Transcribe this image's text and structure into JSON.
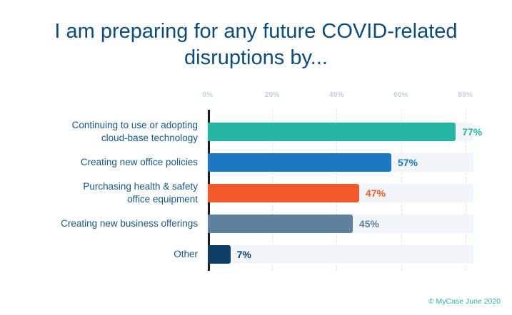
{
  "title": "I am preparing for any future COVID-related disruptions by...",
  "footer": "© MyCase June 2020",
  "chart_data": {
    "type": "bar",
    "orientation": "horizontal",
    "title": "I am preparing for any future COVID-related disruptions by...",
    "categories": [
      "Continuing to use or adopting\ncloud-base technology",
      "Creating new office policies",
      "Purchasing health & safety\noffice equipment",
      "Creating new business offerings",
      "Other"
    ],
    "values": [
      77,
      57,
      47,
      45,
      7
    ],
    "value_labels": [
      "77%",
      "57%",
      "47%",
      "45%",
      "7%"
    ],
    "colors": [
      "#26b5a3",
      "#1b78c0",
      "#f15b2c",
      "#5e81a0",
      "#0d3d62"
    ],
    "x_ticks": [
      "0%",
      "20%",
      "40%",
      "60%",
      "80%"
    ],
    "xlim": [
      0,
      80
    ],
    "axis_max": 82.5,
    "grid": "dashed-vertical",
    "legend": "none",
    "track_color": "#f3f6f8",
    "source": "© MyCase June 2020"
  }
}
